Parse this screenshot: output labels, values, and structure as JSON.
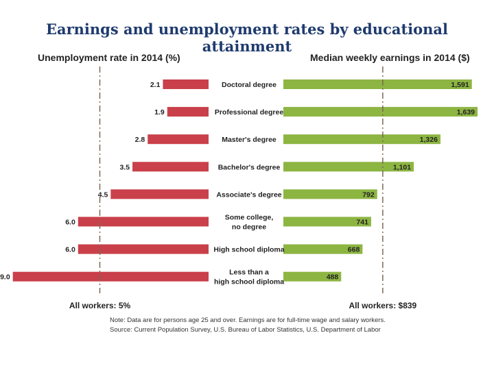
{
  "title": "Earnings and unemployment rates by educational attainment",
  "colors": {
    "unemployment_bar": "#c9404a",
    "earnings_bar": "#8db542",
    "title": "#1f3b6e",
    "refline": "#7a6a55"
  },
  "chart_data": [
    {
      "type": "bar",
      "orientation": "horizontal",
      "direction": "leftward",
      "title": "Unemployment rate in 2014 (%)",
      "categories": [
        [
          "Doctoral degree"
        ],
        [
          "Professional degree"
        ],
        [
          "Master's degree"
        ],
        [
          "Bachelor's degree"
        ],
        [
          "Associate's degree"
        ],
        [
          "Some college,",
          "no degree"
        ],
        [
          "High school diploma"
        ],
        [
          "Less than a",
          "high school diploma"
        ]
      ],
      "values": [
        2.1,
        1.9,
        2.8,
        3.5,
        4.5,
        6.0,
        6.0,
        9.0
      ],
      "value_labels": [
        "2.1",
        "1.9",
        "2.8",
        "3.5",
        "4.5",
        "6.0",
        "6.0",
        "9.0"
      ],
      "reference_value": 5,
      "reference_label": "All workers: 5%",
      "xlim": [
        0,
        9
      ]
    },
    {
      "type": "bar",
      "orientation": "horizontal",
      "direction": "rightward",
      "title": "Median weekly earnings in 2014 ($)",
      "categories": [
        [
          "Doctoral degree"
        ],
        [
          "Professional degree"
        ],
        [
          "Master's degree"
        ],
        [
          "Bachelor's degree"
        ],
        [
          "Associate's degree"
        ],
        [
          "Some college,",
          "no degree"
        ],
        [
          "High school diploma"
        ],
        [
          "Less than a",
          "high school diploma"
        ]
      ],
      "values": [
        1591,
        1639,
        1326,
        1101,
        792,
        741,
        668,
        488
      ],
      "value_labels": [
        "1,591",
        "1,639",
        "1,326",
        "1,101",
        "792",
        "741",
        "668",
        "488"
      ],
      "reference_value": 839,
      "reference_label": "All workers: $839",
      "xlim": [
        0,
        1639
      ]
    }
  ],
  "notes": {
    "note": "Note: Data are for persons age 25 and over. Earnings are for full-time wage and salary workers.",
    "source": "Source: Current Population Survey, U.S. Bureau of Labor Statistics, U.S. Department of Labor"
  }
}
